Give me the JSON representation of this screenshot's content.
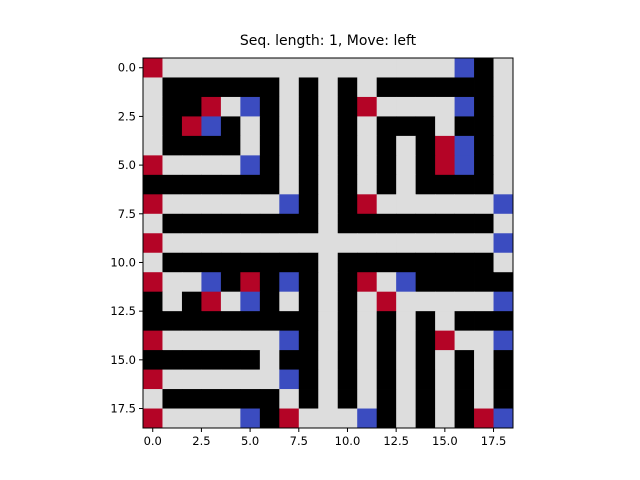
{
  "title": "Seq. length: 1, Move: left",
  "colors": {
    "red": "#b40426",
    "blue": "#3b4cc0",
    "black": "#000000",
    "light": "#dddddd"
  },
  "axes": {
    "x_ticks": [
      "0.0",
      "2.5",
      "5.0",
      "7.5",
      "10.0",
      "12.5",
      "15.0",
      "17.5"
    ],
    "y_ticks": [
      "0.0",
      "2.5",
      "5.0",
      "7.5",
      "10.0",
      "12.5",
      "15.0",
      "17.5"
    ]
  },
  "chart_data": {
    "type": "heatmap",
    "legend_codes": {
      "W": "light",
      "B": "black",
      "R": "red",
      "U": "blue"
    },
    "grid": [
      "RWWWWWWWWWWWWWWWUBW",
      "WBBBBBBWBWBWBBBBBBW",
      "WBBRWUBWBWBRWWWWUBW",
      "WBRUBWBWBWBWBBBWBBW",
      "WBBBBWBWBWBWBWBRUBW",
      "RWWWWUBWBWBWBWBRUBW",
      "BBBBBBBWBWBWBWBBBBW",
      "RWWWWWWUBWBRWWWWWWU",
      "WBBBBBBBBWBBBBBBBBW",
      "RWWWWWWWWWWWWWWWWWU",
      "WBBBBBBBBWBBBBBBBBW",
      "RWWUBRBUBWBRWUBBBBB",
      "BWBRWUBWBWBWRWWWWWU",
      "BBBBBBBBBWBWBWBWBBB",
      "RWWWWWWUBWBWBWBRWWU",
      "BBBBBBWBBWBWBWBWBWB",
      "RWWWWWWUBWBWBWBWBWB",
      "WBBBBBBWBWBWBWBWBWB",
      "RWWWWUBRWWWUBWBWBRU"
    ]
  }
}
